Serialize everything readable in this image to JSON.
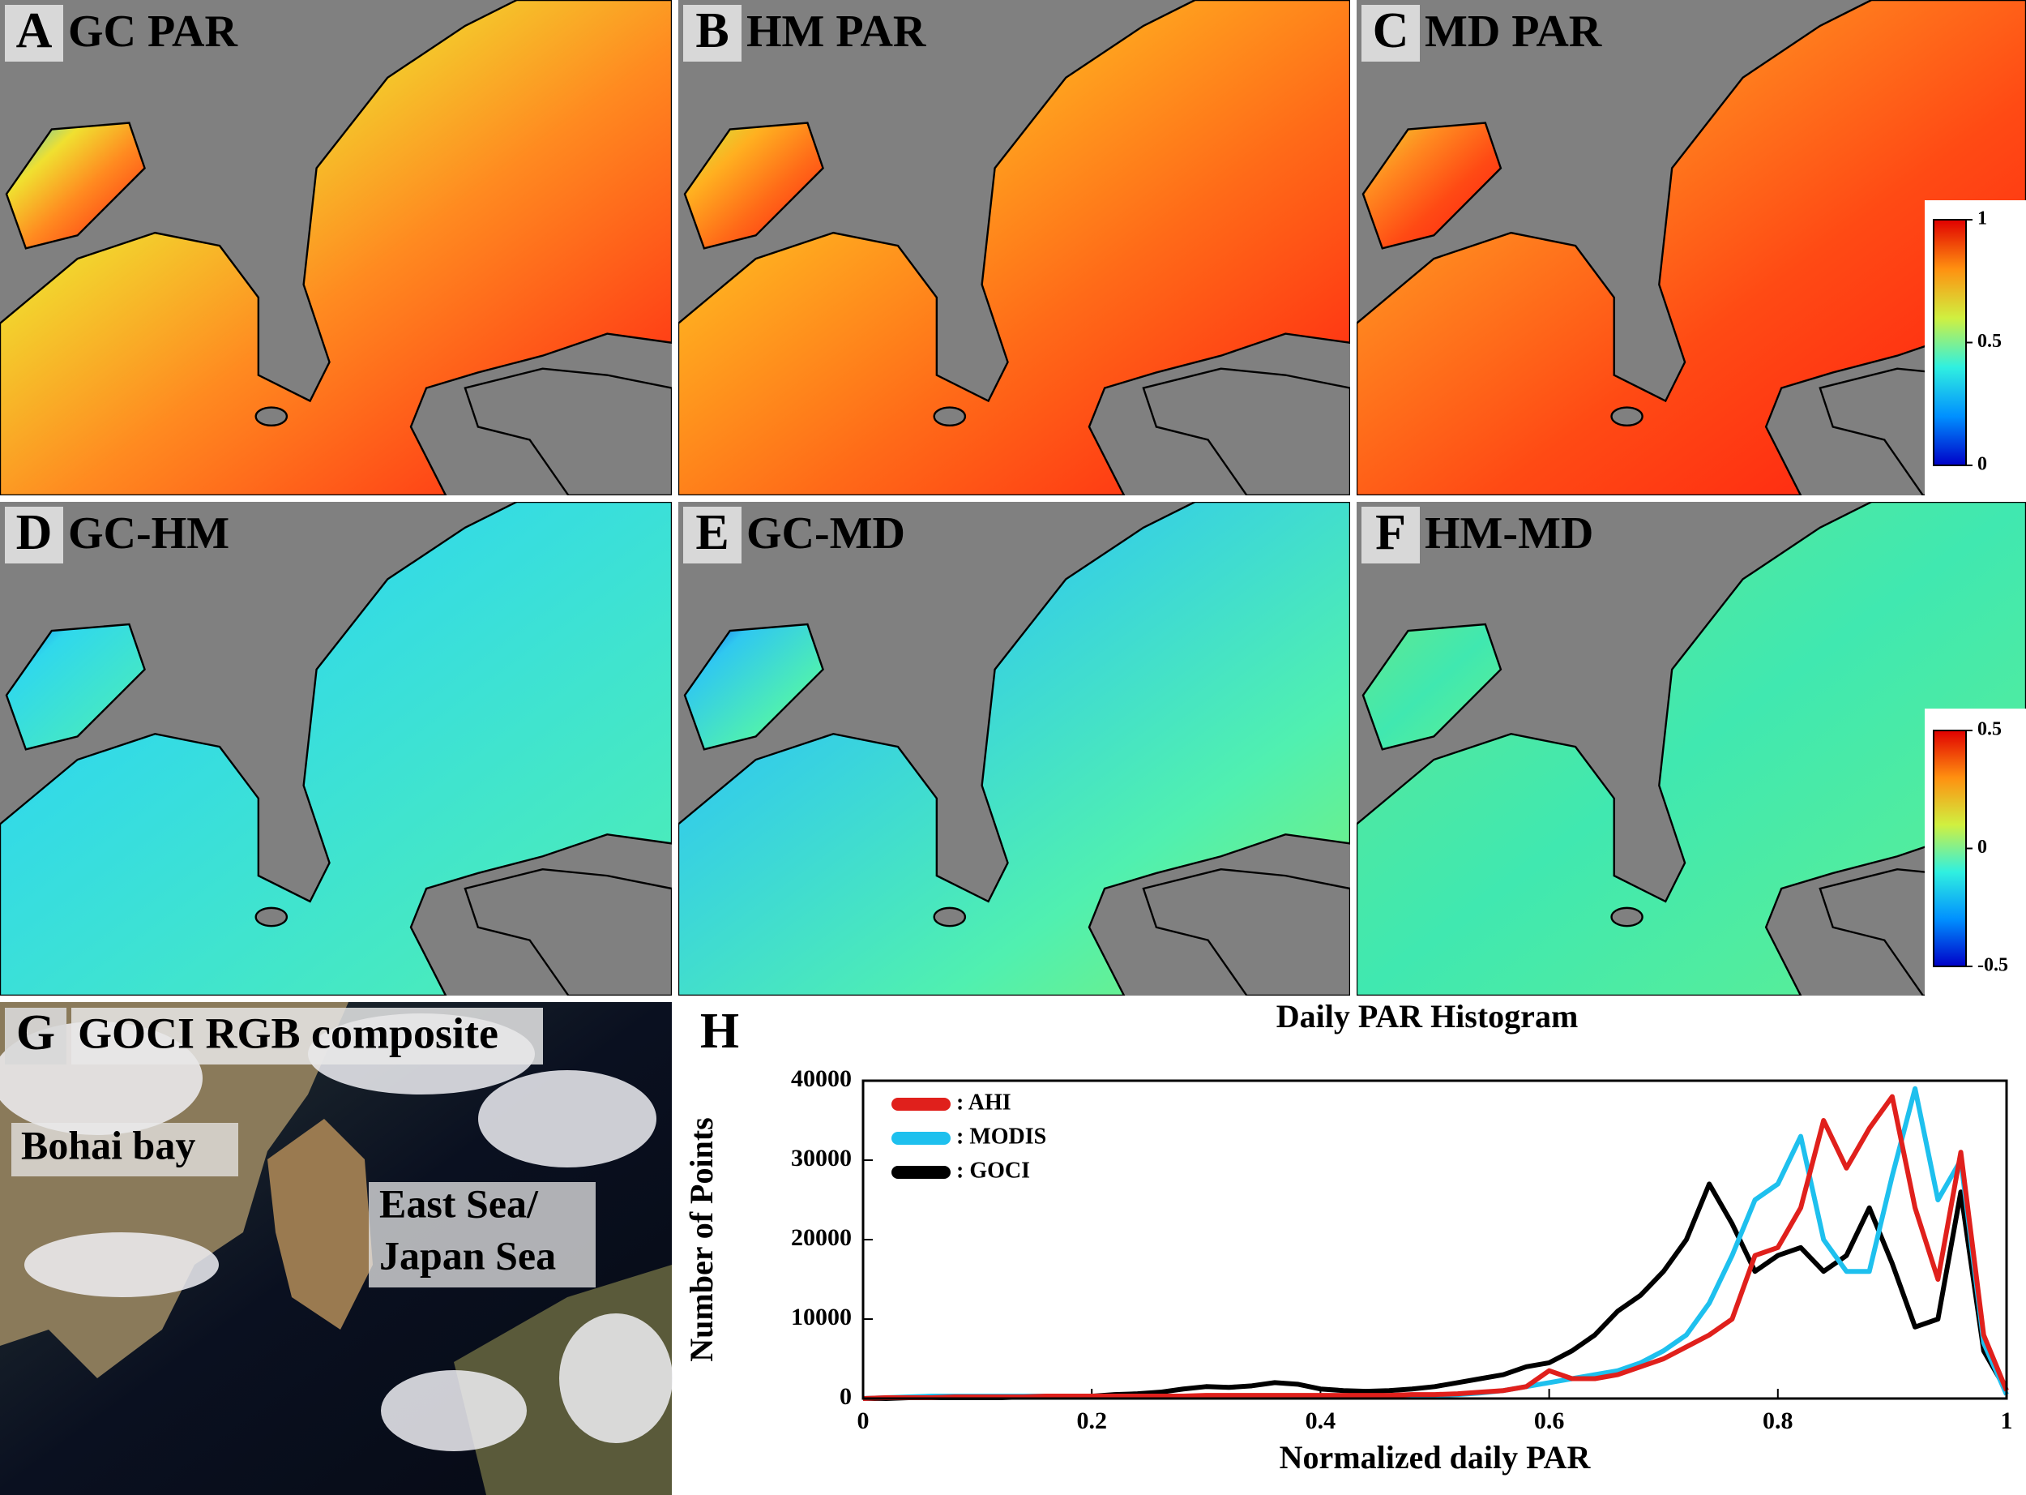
{
  "panels": [
    {
      "letter": "A",
      "title": "GC PAR"
    },
    {
      "letter": "B",
      "title": "HM PAR"
    },
    {
      "letter": "C",
      "title": "MD PAR"
    },
    {
      "letter": "D",
      "title": "GC-HM"
    },
    {
      "letter": "E",
      "title": "GC-MD"
    },
    {
      "letter": "F",
      "title": "HM-MD"
    },
    {
      "letter": "G",
      "title": "GOCI RGB composite",
      "annotations": [
        [
          "Bohai bay"
        ],
        [
          "East Sea/",
          "Japan Sea"
        ]
      ]
    },
    {
      "letter": "H"
    }
  ],
  "colorbars": [
    {
      "ticks": [
        0,
        0.5,
        1
      ]
    },
    {
      "ticks": [
        -0.5,
        0,
        0.5
      ]
    }
  ],
  "chart_data": {
    "type": "line",
    "title": "Daily PAR Histogram",
    "x_label": "Normalized daily PAR",
    "y_label": "Number of Points",
    "x": [
      0,
      0.02,
      0.04,
      0.06,
      0.08,
      0.1,
      0.12,
      0.14,
      0.16,
      0.18,
      0.2,
      0.22,
      0.24,
      0.26,
      0.28,
      0.3,
      0.32,
      0.34,
      0.36,
      0.38,
      0.4,
      0.42,
      0.44,
      0.46,
      0.48,
      0.5,
      0.52,
      0.54,
      0.56,
      0.58,
      0.6,
      0.62,
      0.64,
      0.66,
      0.68,
      0.7,
      0.72,
      0.74,
      0.76,
      0.78,
      0.8,
      0.82,
      0.84,
      0.86,
      0.88,
      0.9,
      0.92,
      0.94,
      0.96,
      0.98,
      1
    ],
    "series": [
      {
        "name": ": AHI",
        "color": "#e0201c",
        "values": [
          0,
          100,
          100,
          100,
          200,
          200,
          200,
          200,
          300,
          300,
          300,
          300,
          300,
          300,
          300,
          400,
          400,
          400,
          400,
          400,
          400,
          400,
          400,
          400,
          500,
          500,
          600,
          800,
          1000,
          1500,
          3500,
          2500,
          2500,
          3000,
          4000,
          5000,
          6500,
          8000,
          10000,
          18000,
          19000,
          24000,
          35000,
          29000,
          34000,
          38000,
          24000,
          15000,
          31000,
          8000,
          1000
        ]
      },
      {
        "name": ": MODIS",
        "color": "#1ec0ee",
        "values": [
          0,
          100,
          200,
          300,
          300,
          300,
          300,
          300,
          300,
          300,
          300,
          300,
          300,
          300,
          300,
          300,
          300,
          300,
          300,
          300,
          300,
          300,
          300,
          300,
          300,
          400,
          500,
          700,
          1000,
          1500,
          2000,
          2500,
          3000,
          3500,
          4500,
          6000,
          8000,
          12000,
          18000,
          25000,
          27000,
          33000,
          20000,
          16000,
          16000,
          28000,
          39000,
          25000,
          30000,
          7000,
          500
        ]
      },
      {
        "name": ": GOCI",
        "color": "#000000",
        "values": [
          0,
          0,
          100,
          100,
          100,
          100,
          100,
          200,
          200,
          200,
          300,
          500,
          600,
          800,
          1200,
          1500,
          1400,
          1600,
          2000,
          1800,
          1200,
          1000,
          900,
          1000,
          1200,
          1500,
          2000,
          2500,
          3000,
          4000,
          4500,
          6000,
          8000,
          11000,
          13000,
          16000,
          20000,
          27000,
          22000,
          16000,
          18000,
          19000,
          16000,
          18000,
          24000,
          17000,
          9000,
          10000,
          26000,
          6000,
          1000
        ]
      }
    ],
    "xlim": [
      0,
      1
    ],
    "ylim": [
      0,
      40000
    ],
    "xticks": [
      0,
      0.2,
      0.4,
      0.6,
      0.8,
      1
    ],
    "yticks": [
      0,
      10000,
      20000,
      30000,
      40000
    ]
  }
}
